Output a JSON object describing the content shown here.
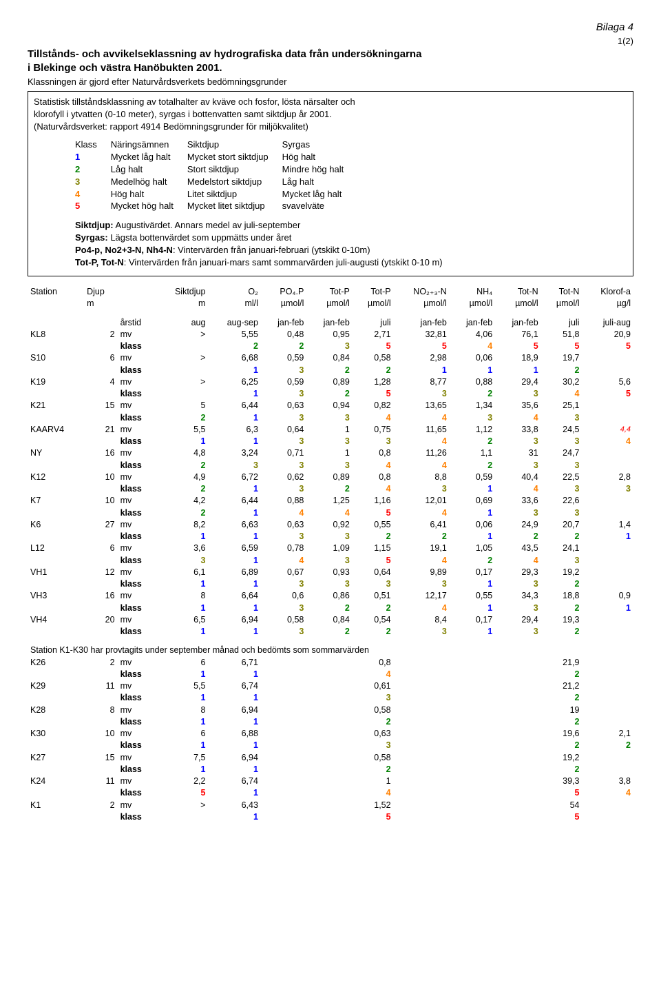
{
  "header": {
    "bilaga": "Bilaga 4",
    "page": "1(2)"
  },
  "title_lines": [
    "Tillstånds- och avvikelseklassning av hydrografiska data från undersökningarna",
    "i Blekinge och västra Hanöbukten 2001."
  ],
  "subtitle": "Klassningen är gjord  efter Naturvårdsverkets bedömningsgrunder",
  "box": {
    "lines": [
      "Statistisk tillståndsklassning av totalhalter av kväve och fosfor, lösta närsalter och",
      "klorofyll i ytvatten (0-10 meter), syrgas i bottenvatten samt siktdjup år 2001."
    ],
    "ref": "(Naturvårdsverket: rapport 4914 Bedömningsgrunder för miljökvalitet)",
    "klass_headers": [
      "Klass",
      "Näringsämnen",
      "Siktdjup",
      "Syrgas"
    ],
    "klass_rows": [
      {
        "n": "1",
        "c": "k1",
        "a": "Mycket låg halt",
        "b": "Mycket stort siktdjup",
        "s": "Hög halt"
      },
      {
        "n": "2",
        "c": "k2",
        "a": "Låg halt",
        "b": "Stort siktdjup",
        "s": "Mindre hög halt"
      },
      {
        "n": "3",
        "c": "k3",
        "a": "Medelhög halt",
        "b": "Medelstort siktdjup",
        "s": "Låg halt"
      },
      {
        "n": "4",
        "c": "k4",
        "a": "Hög halt",
        "b": "Litet siktdjup",
        "s": "Mycket låg halt"
      },
      {
        "n": "5",
        "c": "k5",
        "a": "Mycket hög halt",
        "b": "Mycket litet siktdjup",
        "s": "svavelväte"
      }
    ],
    "notes": [
      {
        "b": "Siktdjup:",
        "t": " Augustivärdet. Annars medel av juli-september"
      },
      {
        "b": "Syrgas:",
        "t": " Lägsta bottenvärdet som uppmätts under året"
      },
      {
        "b": "Po4-p, No2+3-N, Nh4-N",
        "t": ": Vintervärden från januari-februari (ytskikt 0-10m)"
      },
      {
        "b": "Tot-P, Tot-N",
        "t": ": Vintervärden från januari-mars samt sommarvärden juli-augusti (ytskikt 0-10 m)"
      }
    ]
  },
  "table": {
    "hdr1": [
      "Station",
      "Djup",
      "",
      "Siktdjup",
      "O₂",
      "PO₄.P",
      "Tot-P",
      "Tot-P",
      "NO₂₊₃-N",
      "NH₄",
      "Tot-N",
      "Tot-N",
      "Klorof-a"
    ],
    "hdr2": [
      "",
      "m",
      "",
      "m",
      "ml/l",
      "µmol/l",
      "µmol/l",
      "µmol/l",
      "µmol/l",
      "µmol/l",
      "µmol/l",
      "µmol/l",
      "µg/l"
    ],
    "hdr3": [
      "",
      "",
      "årstid",
      "aug",
      "aug-sep",
      "jan-feb",
      "jan-feb",
      "juli",
      "jan-feb",
      "jan-feb",
      "jan-feb",
      "juli",
      "juli-aug"
    ],
    "rows": [
      {
        "st": "KL8",
        "dj": "2",
        "mv": [
          "mv",
          ">",
          "5,55",
          "0,48",
          "0,95",
          "2,71",
          "32,81",
          "4,06",
          "76,1",
          "51,8",
          "20,9"
        ],
        "klass": [
          "klass",
          "",
          "2",
          "2",
          "3",
          "5",
          "5",
          "4",
          "5",
          "5",
          "5"
        ]
      },
      {
        "st": "S10",
        "dj": "6",
        "mv": [
          "mv",
          ">",
          "6,68",
          "0,59",
          "0,84",
          "0,58",
          "2,98",
          "0,06",
          "18,9",
          "19,7",
          ""
        ],
        "klass": [
          "klass",
          "",
          "1",
          "3",
          "2",
          "2",
          "1",
          "1",
          "1",
          "2",
          ""
        ]
      },
      {
        "st": "K19",
        "dj": "4",
        "mv": [
          "mv",
          ">",
          "6,25",
          "0,59",
          "0,89",
          "1,28",
          "8,77",
          "0,88",
          "29,4",
          "30,2",
          "5,6"
        ],
        "klass": [
          "klass",
          "",
          "1",
          "3",
          "2",
          "5",
          "3",
          "2",
          "3",
          "4",
          "5"
        ]
      },
      {
        "st": "K21",
        "dj": "15",
        "mv": [
          "mv",
          "5",
          "6,44",
          "0,63",
          "0,94",
          "0,82",
          "13,65",
          "1,34",
          "35,6",
          "25,1",
          ""
        ],
        "klass": [
          "klass",
          "2",
          "1",
          "3",
          "3",
          "4",
          "4",
          "3",
          "4",
          "3",
          ""
        ]
      },
      {
        "st": "KAARV4",
        "dj": "21",
        "mv": [
          "mv",
          "5,5",
          "6,3",
          "0,64",
          "1",
          "0,75",
          "11,65",
          "1,12",
          "33,8",
          "24,5",
          "4,4"
        ],
        "klass": [
          "klass",
          "1",
          "1",
          "3",
          "3",
          "3",
          "4",
          "2",
          "3",
          "3",
          "4"
        ]
      },
      {
        "st": "NY",
        "dj": "16",
        "mv": [
          "mv",
          "4,8",
          "3,24",
          "0,71",
          "1",
          "0,8",
          "11,26",
          "1,1",
          "31",
          "24,7",
          ""
        ],
        "klass": [
          "klass",
          "2",
          "3",
          "3",
          "3",
          "4",
          "4",
          "2",
          "3",
          "3",
          ""
        ]
      },
      {
        "st": "K12",
        "dj": "10",
        "mv": [
          "mv",
          "4,9",
          "6,72",
          "0,62",
          "0,89",
          "0,8",
          "8,8",
          "0,59",
          "40,4",
          "22,5",
          "2,8"
        ],
        "klass": [
          "klass",
          "2",
          "1",
          "3",
          "2",
          "4",
          "3",
          "1",
          "4",
          "3",
          "3"
        ]
      },
      {
        "st": "K7",
        "dj": "10",
        "mv": [
          "mv",
          "4,2",
          "6,44",
          "0,88",
          "1,25",
          "1,16",
          "12,01",
          "0,69",
          "33,6",
          "22,6",
          ""
        ],
        "klass": [
          "klass",
          "2",
          "1",
          "4",
          "4",
          "5",
          "4",
          "1",
          "3",
          "3",
          ""
        ]
      },
      {
        "st": "K6",
        "dj": "27",
        "mv": [
          "mv",
          "8,2",
          "6,63",
          "0,63",
          "0,92",
          "0,55",
          "6,41",
          "0,06",
          "24,9",
          "20,7",
          "1,4"
        ],
        "klass": [
          "klass",
          "1",
          "1",
          "3",
          "3",
          "2",
          "2",
          "1",
          "2",
          "2",
          "1"
        ]
      },
      {
        "st": "L12",
        "dj": "6",
        "mv": [
          "mv",
          "3,6",
          "6,59",
          "0,78",
          "1,09",
          "1,15",
          "19,1",
          "1,05",
          "43,5",
          "24,1",
          ""
        ],
        "klass": [
          "klass",
          "3",
          "1",
          "4",
          "3",
          "5",
          "4",
          "2",
          "4",
          "3",
          ""
        ]
      },
      {
        "st": "VH1",
        "dj": "12",
        "mv": [
          "mv",
          "6,1",
          "6,89",
          "0,67",
          "0,93",
          "0,64",
          "9,89",
          "0,17",
          "29,3",
          "19,2",
          ""
        ],
        "klass": [
          "klass",
          "1",
          "1",
          "3",
          "3",
          "3",
          "3",
          "1",
          "3",
          "2",
          ""
        ]
      },
      {
        "st": "VH3",
        "dj": "16",
        "mv": [
          "mv",
          "8",
          "6,64",
          "0,6",
          "0,86",
          "0,51",
          "12,17",
          "0,55",
          "34,3",
          "18,8",
          "0,9"
        ],
        "klass": [
          "klass",
          "1",
          "1",
          "3",
          "2",
          "2",
          "4",
          "1",
          "3",
          "2",
          "1"
        ]
      },
      {
        "st": "VH4",
        "dj": "20",
        "mv": [
          "mv",
          "6,5",
          "6,94",
          "0,58",
          "0,84",
          "0,54",
          "8,4",
          "0,17",
          "29,4",
          "19,3",
          ""
        ],
        "klass": [
          "klass",
          "1",
          "1",
          "3",
          "2",
          "2",
          "3",
          "1",
          "3",
          "2",
          ""
        ]
      }
    ],
    "section2_title": "Station K1-K30 har provtagits under september månad och bedömts som sommarvärden",
    "rows2": [
      {
        "st": "K26",
        "dj": "2",
        "mv": [
          "mv",
          "6",
          "6,71",
          "",
          "",
          "0,8",
          "",
          "",
          "",
          "21,9",
          ""
        ],
        "klass": [
          "klass",
          "1",
          "1",
          "",
          "",
          "4",
          "",
          "",
          "",
          "2",
          ""
        ]
      },
      {
        "st": "K29",
        "dj": "11",
        "mv": [
          "mv",
          "5,5",
          "6,74",
          "",
          "",
          "0,61",
          "",
          "",
          "",
          "21,2",
          ""
        ],
        "klass": [
          "klass",
          "1",
          "1",
          "",
          "",
          "3",
          "",
          "",
          "",
          "2",
          ""
        ]
      },
      {
        "st": "K28",
        "dj": "8",
        "mv": [
          "mv",
          "8",
          "6,94",
          "",
          "",
          "0,58",
          "",
          "",
          "",
          "19",
          ""
        ],
        "klass": [
          "klass",
          "1",
          "1",
          "",
          "",
          "2",
          "",
          "",
          "",
          "2",
          ""
        ]
      },
      {
        "st": "K30",
        "dj": "10",
        "mv": [
          "mv",
          "6",
          "6,88",
          "",
          "",
          "0,63",
          "",
          "",
          "",
          "19,6",
          "2,1"
        ],
        "klass": [
          "klass",
          "1",
          "1",
          "",
          "",
          "3",
          "",
          "",
          "",
          "2",
          "2"
        ]
      },
      {
        "st": "K27",
        "dj": "15",
        "mv": [
          "mv",
          "7,5",
          "6,94",
          "",
          "",
          "0,58",
          "",
          "",
          "",
          "19,2",
          ""
        ],
        "klass": [
          "klass",
          "1",
          "1",
          "",
          "",
          "2",
          "",
          "",
          "",
          "2",
          ""
        ]
      },
      {
        "st": "K24",
        "dj": "11",
        "mv": [
          "mv",
          "2,2",
          "6,74",
          "",
          "",
          "1",
          "",
          "",
          "",
          "39,3",
          "3,8"
        ],
        "klass": [
          "klass",
          "5",
          "1",
          "",
          "",
          "4",
          "",
          "",
          "",
          "5",
          "4"
        ]
      },
      {
        "st": "K1",
        "dj": "2",
        "mv": [
          "mv",
          ">",
          "6,43",
          "",
          "",
          "1,52",
          "",
          "",
          "",
          "54",
          ""
        ],
        "klass": [
          "klass",
          "",
          "1",
          "",
          "",
          "5",
          "",
          "",
          "",
          "5",
          ""
        ]
      }
    ]
  }
}
